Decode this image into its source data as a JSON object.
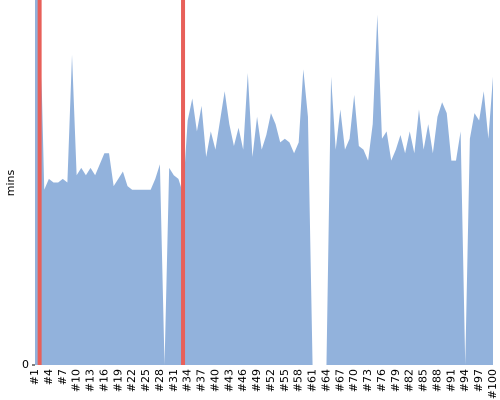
{
  "chart_data": {
    "type": "area",
    "ylabel": "mins",
    "categories": [
      "#1",
      null,
      null,
      "#4",
      null,
      null,
      "#7",
      null,
      null,
      "#10",
      null,
      null,
      "#13",
      null,
      null,
      "#16",
      null,
      null,
      "#19",
      null,
      null,
      "#22",
      null,
      null,
      "#25",
      null,
      null,
      "#28",
      null,
      null,
      "#31",
      null,
      null,
      "#34",
      null,
      null,
      "#37",
      null,
      null,
      "#40",
      null,
      null,
      "#43",
      null,
      null,
      "#46",
      null,
      null,
      "#49",
      null,
      null,
      "#52",
      null,
      null,
      "#55",
      null,
      null,
      "#58",
      null,
      null,
      "#61",
      null,
      null,
      "#64",
      null,
      null,
      "#67",
      null,
      null,
      "#70",
      null,
      null,
      "#73",
      null,
      null,
      "#76",
      null,
      null,
      "#79",
      null,
      null,
      "#82",
      null,
      null,
      "#85",
      null,
      null,
      "#88",
      null,
      null,
      "#91",
      null,
      null,
      "#94",
      null,
      null,
      "#97",
      null,
      null,
      "#100"
    ],
    "series": [
      {
        "color": "#92b2dc",
        "values": [
          100,
          100,
          48,
          51,
          50,
          50,
          51,
          50,
          85,
          52,
          54,
          52,
          54,
          52,
          55,
          58,
          58,
          49,
          51,
          53,
          49,
          48,
          48,
          48,
          48,
          48,
          51,
          55,
          0,
          54,
          52,
          51,
          47,
          67,
          73,
          64,
          71,
          57,
          64,
          59,
          67,
          75,
          66,
          60,
          65,
          59,
          80,
          57,
          68,
          59,
          63,
          69,
          66,
          61,
          62,
          61,
          58,
          61,
          81,
          68,
          0,
          0,
          0,
          0,
          79,
          59,
          70,
          59,
          62,
          74,
          60,
          59,
          56,
          66,
          96,
          62,
          64,
          56,
          59,
          63,
          58,
          64,
          58,
          70,
          59,
          66,
          58,
          68,
          72,
          69,
          56,
          56,
          64,
          0,
          62,
          69,
          67,
          75,
          62,
          79
        ]
      }
    ],
    "highlight": [
      1,
      32
    ],
    "highlight_color": "#e8605a",
    "ylim": [
      0,
      100
    ],
    "yticks": [
      0
    ]
  }
}
